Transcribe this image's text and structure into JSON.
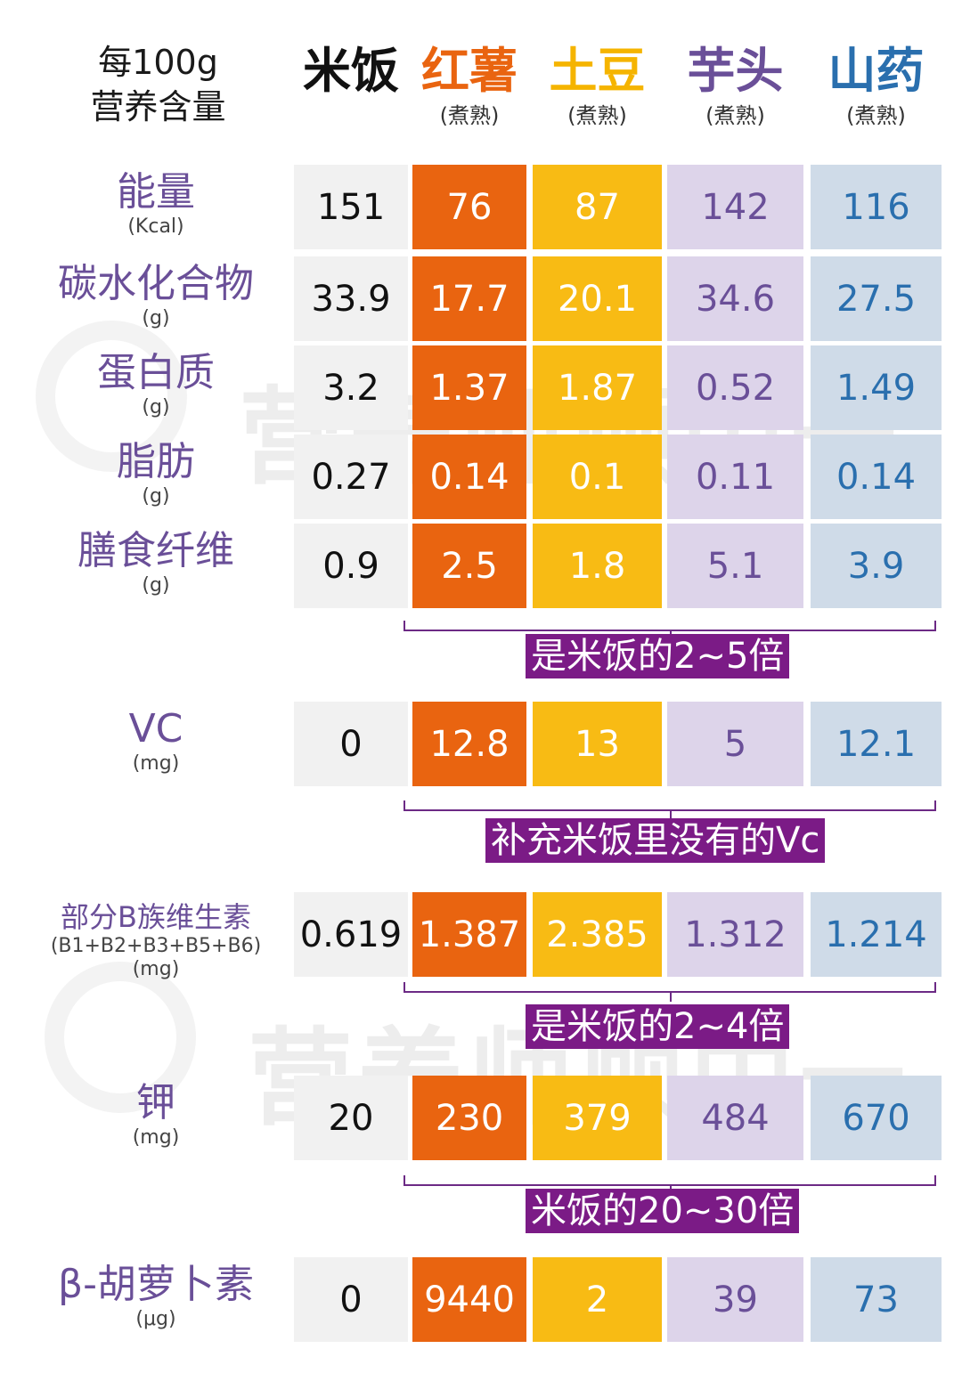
{
  "header": {
    "label_line1": "每100g",
    "label_line2": "营养含量"
  },
  "columns": [
    {
      "name": "米饭",
      "note": "",
      "color": "#111111"
    },
    {
      "name": "红薯",
      "note": "(煮熟)",
      "color": "#e96410"
    },
    {
      "name": "土豆",
      "note": "(煮熟)",
      "color": "#f5b400"
    },
    {
      "name": "芋头",
      "note": "(煮熟)",
      "color": "#6a4f98"
    },
    {
      "name": "山药",
      "note": "(煮熟)",
      "color": "#2a6fae"
    }
  ],
  "chart_data": {
    "type": "table",
    "title": "",
    "rows": [
      {
        "name": "能量",
        "sub": "",
        "unit": "(Kcal)",
        "values": [
          "151",
          "76",
          "87",
          "142",
          "116"
        ]
      },
      {
        "name": "碳水化合物",
        "sub": "",
        "unit": "(g)",
        "values": [
          "33.9",
          "17.7",
          "20.1",
          "34.6",
          "27.5"
        ]
      },
      {
        "name": "蛋白质",
        "sub": "",
        "unit": "(g)",
        "values": [
          "3.2",
          "1.37",
          "1.87",
          "0.52",
          "1.49"
        ]
      },
      {
        "name": "脂肪",
        "sub": "",
        "unit": "(g)",
        "values": [
          "0.27",
          "0.14",
          "0.1",
          "0.11",
          "0.14"
        ]
      },
      {
        "name": "膳食纤维",
        "sub": "",
        "unit": "(g)",
        "values": [
          "0.9",
          "2.5",
          "1.8",
          "5.1",
          "3.9"
        ]
      },
      {
        "name": "VC",
        "sub": "",
        "unit": "(mg)",
        "values": [
          "0",
          "12.8",
          "13",
          "5",
          "12.1"
        ]
      },
      {
        "name": "部分B族维生素",
        "sub": "(B1+B2+B3+B5+B6)",
        "unit": "(mg)",
        "values": [
          "0.619",
          "1.387",
          "2.385",
          "1.312",
          "1.214"
        ]
      },
      {
        "name": "钾",
        "sub": "",
        "unit": "(mg)",
        "values": [
          "20",
          "230",
          "379",
          "484",
          "670"
        ]
      },
      {
        "name": "β-胡萝卜素",
        "sub": "",
        "unit": "(μg)",
        "values": [
          "0",
          "9440",
          "2",
          "39",
          "73"
        ]
      }
    ],
    "annotations": [
      {
        "text": "是米饭的2~5倍"
      },
      {
        "text": "补充米饭里没有的Vc"
      },
      {
        "text": "是米饭的2~4倍"
      },
      {
        "text": "米饭的20~30倍"
      }
    ]
  },
  "watermark": {
    "text": "营养师顾中一"
  }
}
